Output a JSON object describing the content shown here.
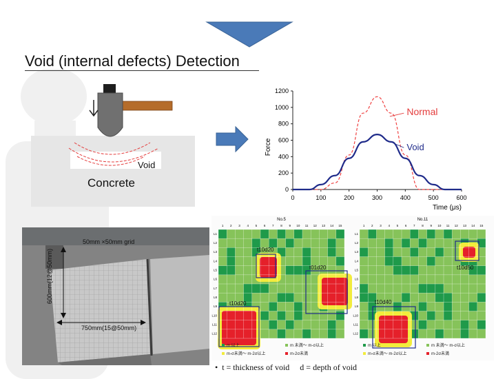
{
  "title": "Void (internal defects) Detection",
  "diagram": {
    "void_label": "Void",
    "concrete_label": "Concrete"
  },
  "chart_data": {
    "type": "line",
    "xlabel": "Time (μs)",
    "ylabel": "Force",
    "xlim": [
      0,
      600
    ],
    "ylim": [
      0,
      1200
    ],
    "xticks": [
      0,
      100,
      200,
      300,
      400,
      500,
      600
    ],
    "yticks": [
      0,
      200,
      400,
      600,
      800,
      1000,
      1200
    ],
    "series": [
      {
        "name": "Normal",
        "style": "dashed",
        "color": "#ef4040",
        "x": [
          0,
          100,
          150,
          200,
          250,
          300,
          350,
          400,
          450,
          600
        ],
        "y": [
          0,
          0,
          80,
          420,
          930,
          1130,
          930,
          420,
          0,
          0
        ]
      },
      {
        "name": "Void",
        "style": "solid",
        "color": "#1f2b8a",
        "x": [
          0,
          60,
          100,
          150,
          200,
          250,
          300,
          350,
          400,
          450,
          500,
          540,
          600
        ],
        "y": [
          0,
          0,
          60,
          170,
          380,
          580,
          670,
          580,
          380,
          170,
          60,
          0,
          0
        ]
      }
    ]
  },
  "photo": {
    "grid_label": "50mm ×50mm grid",
    "height_label": "600mm(12@50mm)",
    "width_label": "750mm(15@50mm)"
  },
  "maps": [
    {
      "title": "No.5",
      "col_labels": [
        "1",
        "2",
        "3",
        "4",
        "5",
        "6",
        "7",
        "8",
        "9",
        "10",
        "11",
        "12",
        "13",
        "14",
        "15"
      ],
      "row_labels": [
        "L1",
        "L2",
        "L3",
        "L4",
        "L5",
        "L6",
        "L7",
        "L8",
        "L9",
        "L10",
        "L11",
        "L12"
      ],
      "annotations": [
        "t10d20",
        "t01d20",
        "t10d20"
      ]
    },
    {
      "title": "No.11",
      "col_labels": [
        "1",
        "2",
        "3",
        "4",
        "5",
        "6",
        "7",
        "8",
        "9",
        "10",
        "11",
        "12",
        "13",
        "14",
        "15"
      ],
      "row_labels": [
        "L1",
        "L2",
        "L3",
        "L4",
        "L5",
        "L6",
        "L7",
        "L8",
        "L9",
        "L10",
        "L11",
        "L12"
      ],
      "annotations": [
        "t10d50",
        "t10d40"
      ]
    }
  ],
  "legend": {
    "colors": [
      "#1f9a4a",
      "#86c35a",
      "#f2ec3c",
      "#e5202a"
    ],
    "items": [
      "m 以上",
      "m 未満～ m-σ以上",
      "m-σ未満～ m-2σ以上",
      "m-2σ未満"
    ]
  },
  "note": "t = thickness of void 　d = depth of void"
}
